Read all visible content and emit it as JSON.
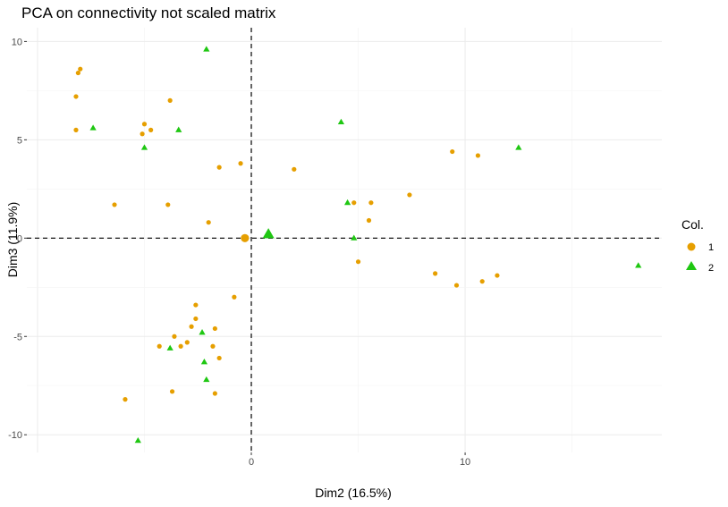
{
  "chart_data": {
    "type": "scatter",
    "title": "PCA on connectivity not scaled matrix",
    "xlabel": "Dim2 (16.5%)",
    "ylabel": "Dim3 (11.9%)",
    "xlim": [
      -10.5,
      19.2
    ],
    "ylim": [
      -10.9,
      10.7
    ],
    "x_ticks": [
      0,
      10
    ],
    "y_ticks": [
      -10,
      -5,
      0,
      5,
      10
    ],
    "grid": true,
    "reference_lines": {
      "x": 0,
      "y": 0,
      "style": "dashed"
    },
    "legend": {
      "title": "Col.",
      "position": "right"
    },
    "series": [
      {
        "name": "1",
        "color": "#E69F00",
        "marker": "circle",
        "points": [
          [
            -8.0,
            8.6
          ],
          [
            -8.1,
            8.4
          ],
          [
            -8.2,
            5.5
          ],
          [
            -8.2,
            7.2
          ],
          [
            -5.0,
            5.8
          ],
          [
            -4.7,
            5.5
          ],
          [
            -5.1,
            5.3
          ],
          [
            -3.8,
            7.0
          ],
          [
            -1.5,
            3.6
          ],
          [
            -0.5,
            3.8
          ],
          [
            2.0,
            3.5
          ],
          [
            -6.4,
            1.7
          ],
          [
            -3.9,
            1.7
          ],
          [
            -2.0,
            0.8
          ],
          [
            4.8,
            1.8
          ],
          [
            5.6,
            1.8
          ],
          [
            7.4,
            2.2
          ],
          [
            5.5,
            0.9
          ],
          [
            9.4,
            4.4
          ],
          [
            10.6,
            4.2
          ],
          [
            5.0,
            -1.2
          ],
          [
            8.6,
            -1.8
          ],
          [
            9.6,
            -2.4
          ],
          [
            10.8,
            -2.2
          ],
          [
            11.5,
            -1.9
          ],
          [
            -0.8,
            -3.0
          ],
          [
            -2.6,
            -3.4
          ],
          [
            -2.6,
            -4.1
          ],
          [
            -2.8,
            -4.5
          ],
          [
            -1.7,
            -4.6
          ],
          [
            -3.6,
            -5.0
          ],
          [
            -4.3,
            -5.5
          ],
          [
            -3.0,
            -5.3
          ],
          [
            -3.3,
            -5.5
          ],
          [
            -1.8,
            -5.5
          ],
          [
            -1.5,
            -6.1
          ],
          [
            -5.9,
            -8.2
          ],
          [
            -3.7,
            -7.8
          ],
          [
            -1.7,
            -7.9
          ]
        ],
        "centroid": [
          -0.3,
          0.0
        ]
      },
      {
        "name": "2",
        "color": "#1FC712",
        "marker": "triangle",
        "points": [
          [
            -2.1,
            9.6
          ],
          [
            -7.4,
            5.6
          ],
          [
            -3.4,
            5.5
          ],
          [
            -5.0,
            4.6
          ],
          [
            4.2,
            5.9
          ],
          [
            12.5,
            4.6
          ],
          [
            4.5,
            1.8
          ],
          [
            4.8,
            0.0
          ],
          [
            18.1,
            -1.4
          ],
          [
            -2.3,
            -4.8
          ],
          [
            -3.8,
            -5.6
          ],
          [
            -2.2,
            -6.3
          ],
          [
            -2.1,
            -7.2
          ],
          [
            -5.3,
            -10.3
          ]
        ],
        "centroid": [
          0.8,
          0.2
        ]
      }
    ]
  }
}
